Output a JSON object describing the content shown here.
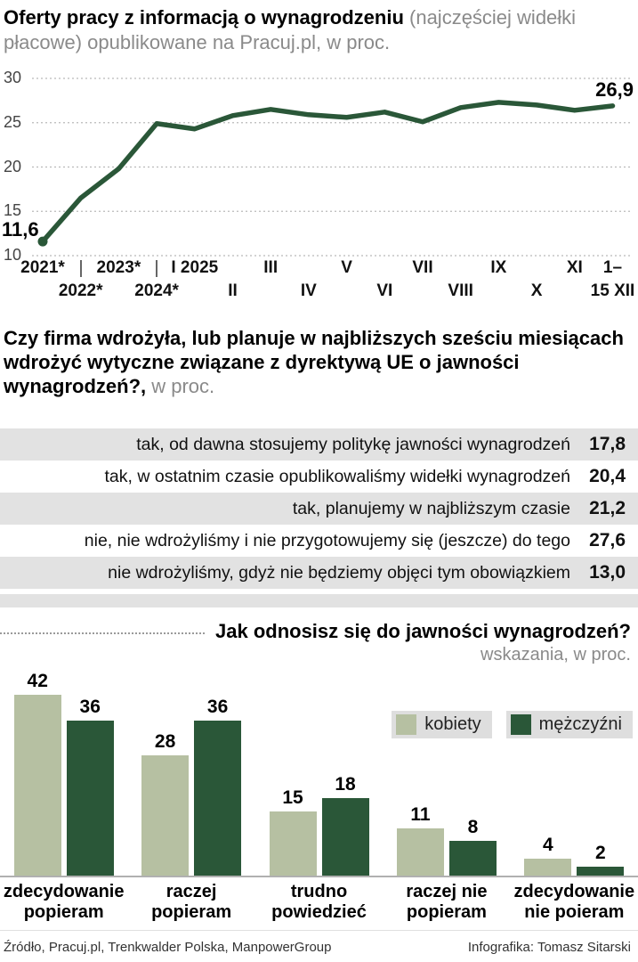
{
  "colors": {
    "dark_green": "#2a5738",
    "light_green": "#b6c0a2",
    "stripe": "#e2e2e2",
    "gray_text": "#8a8a8a"
  },
  "section1": {
    "title_bold": "Oferty pracy z informacją o wynagrodzeniu",
    "title_rest": " (najczęściej widełki płacowe) opublikowane na Pracuj.pl, w proc."
  },
  "section2": {
    "title_bold": "Czy firma wdrożyła, lub planuje w najbliższych sześciu miesiącach wdrożyć wytyczne związane z dyrektywą UE o jawności wynagrodzeń?,",
    "title_rest": " w proc."
  },
  "section3": {
    "title": "Jak odnosisz się do jawności wynagrodzeń?",
    "subtitle": "wskazania, w proc."
  },
  "footer": {
    "source": "Źródło, Pracuj.pl, Trenkwalder Polska, ManpowerGroup",
    "credit": "Infografika: Tomasz Sitarski"
  },
  "chart_data": [
    {
      "type": "line",
      "title": "Oferty pracy z informacją o wynagrodzeniu (najczęściej widełki płacowe) opublikowane na Pracuj.pl, w proc.",
      "x": [
        "2021*",
        "2022*",
        "2023*",
        "2024*",
        "I 2025",
        "II",
        "III",
        "IV",
        "V",
        "VI",
        "VII",
        "VIII",
        "IX",
        "X",
        "XI",
        "1–15 XII"
      ],
      "values": [
        11.6,
        16.5,
        19.8,
        24.9,
        24.3,
        25.8,
        26.5,
        25.9,
        25.6,
        26.2,
        25.1,
        26.7,
        27.3,
        27.0,
        26.4,
        26.9
      ],
      "ylim": [
        10,
        30
      ],
      "yticks": [
        30,
        25,
        20,
        15,
        10
      ],
      "grid": true,
      "first_label": "11,6",
      "last_label": "26,9",
      "axis_labels": [
        {
          "i": 0,
          "row": 1,
          "text": "2021*"
        },
        {
          "i": 1,
          "row": 2,
          "text": "2022*"
        },
        {
          "i": 2,
          "row": 1,
          "text": "2023*"
        },
        {
          "i": 3,
          "row": 2,
          "text": "2024*"
        },
        {
          "i": 4,
          "row": 1,
          "text": "I 2025"
        },
        {
          "i": 5,
          "row": 2,
          "text": "II"
        },
        {
          "i": 6,
          "row": 1,
          "text": "III"
        },
        {
          "i": 7,
          "row": 2,
          "text": "IV"
        },
        {
          "i": 8,
          "row": 1,
          "text": "V"
        },
        {
          "i": 9,
          "row": 2,
          "text": "VI"
        },
        {
          "i": 10,
          "row": 1,
          "text": "VII"
        },
        {
          "i": 11,
          "row": 2,
          "text": "VIII"
        },
        {
          "i": 12,
          "row": 1,
          "text": "IX"
        },
        {
          "i": 13,
          "row": 2,
          "text": "X"
        },
        {
          "i": 14,
          "row": 1,
          "text": "XI"
        },
        {
          "i": 15,
          "row": 1,
          "text": "1–"
        },
        {
          "i": 15,
          "row": 2,
          "text": "15 XII"
        }
      ],
      "separators": [
        1,
        3
      ]
    },
    {
      "type": "table",
      "title": "Czy firma wdrożyła, lub planuje w najbliższych sześciu miesiącach wdrożyć wytyczne związane z dyrektywą UE o jawności wynagrodzeń?, w proc.",
      "rows": [
        {
          "label": "tak, od dawna stosujemy politykę jawności wynagrodzeń",
          "value": "17,8"
        },
        {
          "label": "tak, w ostatnim czasie opublikowaliśmy widełki wynagrodzeń",
          "value": "20,4"
        },
        {
          "label": "tak, planujemy w najbliższym czasie",
          "value": "21,2"
        },
        {
          "label": "nie, nie wdrożyliśmy i nie przygotowujemy się (jeszcze) do tego",
          "value": "27,6"
        },
        {
          "label": "nie wdrożyliśmy, gdyż nie będziemy objęci tym obowiązkiem",
          "value": "13,0"
        }
      ]
    },
    {
      "type": "bar",
      "title": "Jak odnosisz się do jawności wynagrodzeń? wskazania, w proc.",
      "categories": [
        [
          "zdecydowanie",
          "popieram"
        ],
        [
          "raczej",
          "popieram"
        ],
        [
          "trudno",
          "powiedzieć"
        ],
        [
          "raczej nie",
          "popieram"
        ],
        [
          "zdecydowanie",
          "nie poieram"
        ]
      ],
      "series": [
        {
          "name": "kobiety",
          "values": [
            42,
            28,
            15,
            11,
            4
          ]
        },
        {
          "name": "mężczyźni",
          "values": [
            36,
            36,
            18,
            8,
            2
          ]
        }
      ],
      "ylim": [
        0,
        45
      ],
      "legend_position": "right"
    }
  ]
}
